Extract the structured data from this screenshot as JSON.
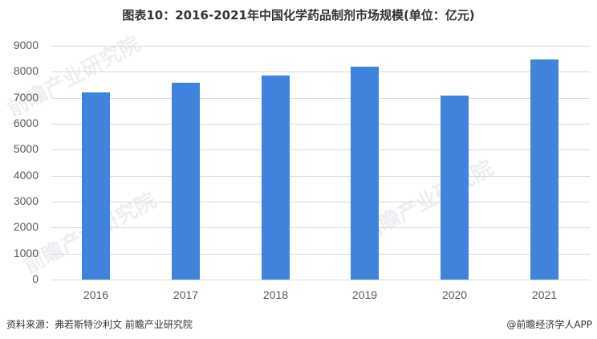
{
  "title": "图表10：2016-2021年中国化学药品制剂市场规模(单位：亿元)",
  "footer": {
    "source": "资料来源：弗若斯特沙利文 前瞻产业研究院",
    "credit": "@前瞻经济学人APP"
  },
  "watermarks": [
    "前瞻产业研究院",
    "前瞻产业研究院",
    "前瞻产业研究院"
  ],
  "y_ticks": [
    "0",
    "1000",
    "2000",
    "3000",
    "4000",
    "5000",
    "6000",
    "7000",
    "8000",
    "9000"
  ],
  "x_ticks": [
    "2016",
    "2017",
    "2018",
    "2019",
    "2020",
    "2021"
  ],
  "colors": {
    "bar": "#4183DC",
    "grid": "#D9D9D9"
  },
  "chart_data": {
    "type": "bar",
    "title": "图表10：2016-2021年中国化学药品制剂市场规模(单位：亿元)",
    "categories": [
      "2016",
      "2017",
      "2018",
      "2019",
      "2020",
      "2021"
    ],
    "values": [
      7210,
      7590,
      7870,
      8200,
      7090,
      8480
    ],
    "xlabel": "",
    "ylabel": "亿元",
    "ylim": [
      0,
      9000
    ],
    "yticks": [
      0,
      1000,
      2000,
      3000,
      4000,
      5000,
      6000,
      7000,
      8000,
      9000
    ],
    "grid": true,
    "legend": null
  }
}
